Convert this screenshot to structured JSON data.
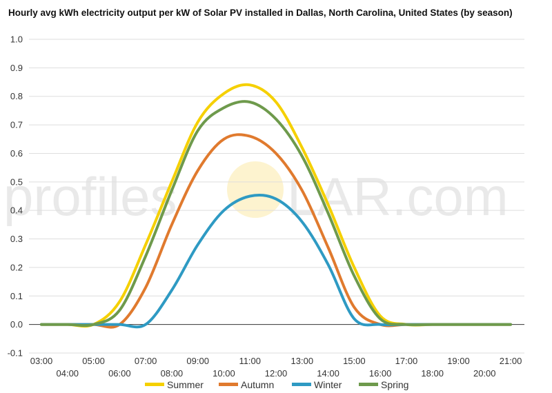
{
  "chart_data": {
    "type": "line",
    "title": "Hourly avg kWh electricity output per kW of Solar PV installed in Dallas, North Carolina, United States (by season)",
    "xlabel": "",
    "ylabel": "",
    "x": [
      "03:00",
      "04:00",
      "05:00",
      "06:00",
      "07:00",
      "08:00",
      "09:00",
      "10:00",
      "11:00",
      "12:00",
      "13:00",
      "14:00",
      "15:00",
      "16:00",
      "17:00",
      "18:00",
      "19:00",
      "20:00",
      "21:00"
    ],
    "y_ticks": [
      "1.0",
      "0.9",
      "0.8",
      "0.7",
      "0.6",
      "0.5",
      "0.4",
      "0.3",
      "0.2",
      "0.1",
      "0.0",
      "-0.1"
    ],
    "ylim": [
      -0.1,
      1.0
    ],
    "grid": true,
    "legend_position": "bottom",
    "series": [
      {
        "name": "Summer",
        "color": "#f5d000",
        "values": [
          0.0,
          0.0,
          0.0,
          0.08,
          0.28,
          0.5,
          0.71,
          0.81,
          0.84,
          0.78,
          0.62,
          0.42,
          0.2,
          0.03,
          0.0,
          0.0,
          0.0,
          0.0,
          0.0
        ]
      },
      {
        "name": "Autumn",
        "color": "#e07a2e",
        "values": [
          0.0,
          0.0,
          0.0,
          0.0,
          0.13,
          0.35,
          0.54,
          0.65,
          0.66,
          0.6,
          0.47,
          0.27,
          0.06,
          0.0,
          0.0,
          0.0,
          0.0,
          0.0,
          0.0
        ]
      },
      {
        "name": "Winter",
        "color": "#2e9ac3",
        "values": [
          0.0,
          0.0,
          0.0,
          0.0,
          0.0,
          0.12,
          0.28,
          0.4,
          0.45,
          0.44,
          0.36,
          0.21,
          0.02,
          0.0,
          0.0,
          0.0,
          0.0,
          0.0,
          0.0
        ]
      },
      {
        "name": "Spring",
        "color": "#6e9a4c",
        "values": [
          0.0,
          0.0,
          0.0,
          0.05,
          0.24,
          0.47,
          0.68,
          0.76,
          0.78,
          0.72,
          0.59,
          0.39,
          0.17,
          0.02,
          0.0,
          0.0,
          0.0,
          0.0,
          0.0
        ]
      }
    ]
  },
  "watermark": {
    "text_left": "profiles",
    "text_right": "LAR.com",
    "sun_color": "#fdf3cf"
  },
  "colors": {
    "grid": "#dedede",
    "zero_line": "#333333",
    "tick_text": "#333333"
  }
}
